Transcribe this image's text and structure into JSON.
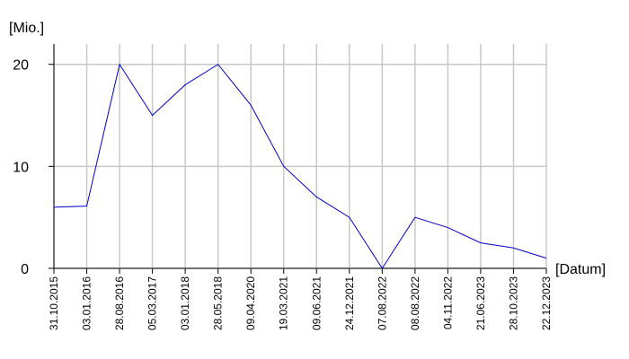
{
  "chart_data": {
    "type": "line",
    "y_label": "[Mio.]",
    "x_label": "[Datum]",
    "categories": [
      "31.10.2015",
      "03.01.2016",
      "28.08.2016",
      "05.03.2017",
      "03.01.2018",
      "28.05.2018",
      "09.04.2020",
      "19.03.2021",
      "09.06.2021",
      "24.12.2021",
      "07.08.2022",
      "08.08.2022",
      "04.11.2022",
      "21.06.2023",
      "28.10.2023",
      "22.12.2023"
    ],
    "values": [
      6,
      6.1,
      20,
      15,
      18,
      20,
      16,
      10,
      7,
      5,
      0,
      5,
      4,
      2.5,
      2,
      1
    ],
    "color": "#0000cc",
    "ylim": [
      0,
      22
    ],
    "yticks": [
      0,
      10,
      20
    ],
    "grid": true
  }
}
